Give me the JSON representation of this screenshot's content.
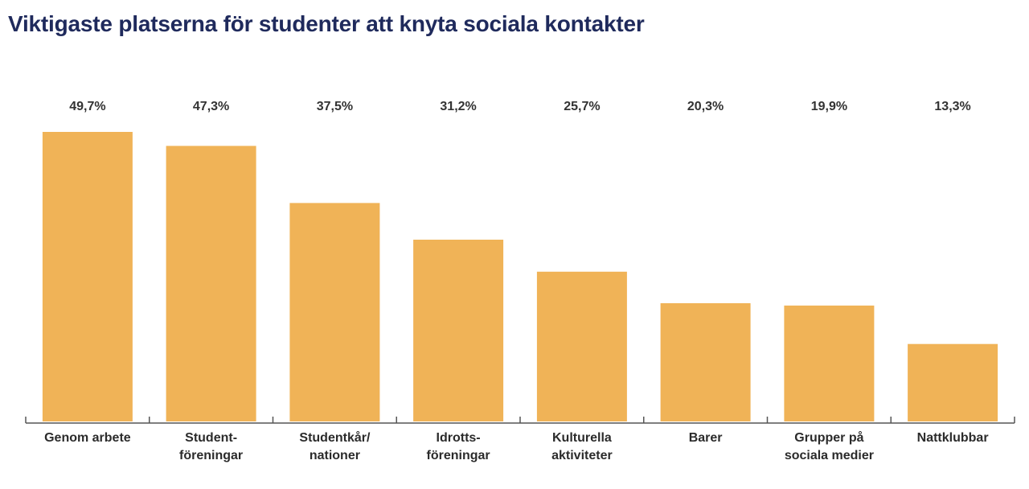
{
  "chart_data": {
    "type": "bar",
    "title": "Viktigaste platserna för studenter att knyta sociala kontakter",
    "categories": [
      [
        "Genom arbete"
      ],
      [
        "Student-",
        "föreningar"
      ],
      [
        "Studentkår/",
        "nationer"
      ],
      [
        "Idrotts-",
        "föreningar"
      ],
      [
        "Kulturella",
        "aktiviteter"
      ],
      [
        "Barer"
      ],
      [
        "Grupper på",
        "sociala medier"
      ],
      [
        "Nattklubbar"
      ]
    ],
    "values": [
      49.7,
      47.3,
      37.5,
      31.2,
      25.7,
      20.3,
      19.9,
      13.3
    ],
    "value_labels": [
      "49,7%",
      "47,3%",
      "37,5%",
      "31,2%",
      "25,7%",
      "20,3%",
      "19,9%",
      "13,3%"
    ],
    "xlabel": "",
    "ylabel": "",
    "ylim": [
      0,
      50
    ],
    "grid": false,
    "legend": "none",
    "bar_color": "#f0b357",
    "axis_color": "#555555"
  }
}
